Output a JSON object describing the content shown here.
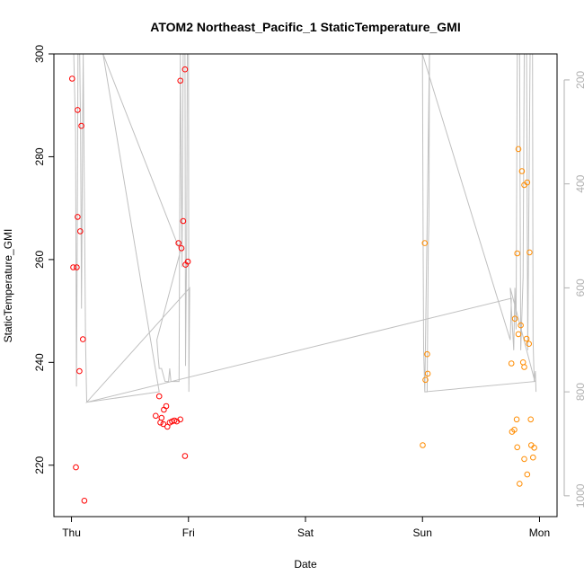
{
  "chart_data": {
    "type": "scatter",
    "title": "ATOM2 Northeast_Pacific_1 StaticTemperature_GMI",
    "xlabel": "Date",
    "ylabel": "StaticTemperature_GMI",
    "x_tick_labels": [
      "Thu",
      "Fri",
      "Sat",
      "Sun",
      "Mon"
    ],
    "x_tick_days": [
      0,
      1,
      2,
      3,
      4
    ],
    "xlim_days": [
      -0.15,
      4.15
    ],
    "ylim": [
      210,
      300
    ],
    "y_ticks": [
      220,
      240,
      260,
      280,
      300
    ],
    "y2_ticks": [
      200,
      400,
      600,
      800,
      1000
    ],
    "y2_lim": [
      150,
      1040
    ],
    "y2_inverted": true,
    "grid": false,
    "colors": {
      "red_points": "#ff0000",
      "orange_points": "#ff8c00",
      "pressure_line": "#c0c0c0",
      "axes": "#000000",
      "right_axis": "#b0b0b0"
    },
    "series": [
      {
        "color": "#ff0000",
        "points": [
          [
            0.006,
            295.2
          ],
          [
            0.053,
            289.1
          ],
          [
            0.085,
            286.0
          ],
          [
            0.053,
            268.3
          ],
          [
            0.075,
            265.5
          ],
          [
            0.015,
            258.5
          ],
          [
            0.045,
            258.5
          ],
          [
            0.098,
            244.5
          ],
          [
            0.068,
            238.3
          ],
          [
            0.038,
            219.6
          ],
          [
            0.11,
            213.1
          ],
          [
            0.75,
            233.4
          ],
          [
            0.72,
            229.6
          ],
          [
            0.77,
            229.2
          ],
          [
            0.79,
            230.8
          ],
          [
            0.81,
            231.5
          ],
          [
            0.76,
            228.3
          ],
          [
            0.785,
            228.0
          ],
          [
            0.84,
            228.3
          ],
          [
            0.86,
            228.5
          ],
          [
            0.88,
            228.7
          ],
          [
            0.82,
            227.5
          ],
          [
            0.9,
            228.5
          ],
          [
            0.93,
            228.9
          ],
          [
            0.97,
            221.8
          ],
          [
            0.93,
            294.8
          ],
          [
            0.97,
            297.0
          ],
          [
            0.955,
            267.5
          ],
          [
            0.915,
            263.2
          ],
          [
            0.94,
            262.2
          ],
          [
            0.975,
            259.0
          ],
          [
            0.995,
            259.6
          ]
        ]
      },
      {
        "color": "#ff8c00",
        "points": [
          [
            3.002,
            223.9
          ],
          [
            3.02,
            263.2
          ],
          [
            3.04,
            241.6
          ],
          [
            3.045,
            237.8
          ],
          [
            3.025,
            236.6
          ],
          [
            3.76,
            239.8
          ],
          [
            3.79,
            248.5
          ],
          [
            3.82,
            245.5
          ],
          [
            3.81,
            261.2
          ],
          [
            3.82,
            281.5
          ],
          [
            3.84,
            247.2
          ],
          [
            3.87,
            274.5
          ],
          [
            3.895,
            275.0
          ],
          [
            3.915,
            261.4
          ],
          [
            3.85,
            277.2
          ],
          [
            3.86,
            240.0
          ],
          [
            3.89,
            244.6
          ],
          [
            3.91,
            243.6
          ],
          [
            3.87,
            239.1
          ],
          [
            3.765,
            226.5
          ],
          [
            3.785,
            226.9
          ],
          [
            3.805,
            228.9
          ],
          [
            3.81,
            223.5
          ],
          [
            3.83,
            216.4
          ],
          [
            3.87,
            221.2
          ],
          [
            3.895,
            218.2
          ],
          [
            3.925,
            228.9
          ],
          [
            3.93,
            223.9
          ],
          [
            3.955,
            223.4
          ],
          [
            3.945,
            221.5
          ]
        ]
      }
    ],
    "pressure_line": {
      "color": "#c0c0c0",
      "points": [
        [
          0.0,
          150
        ],
        [
          0.02,
          150
        ],
        [
          0.035,
          300
        ],
        [
          0.043,
          790
        ],
        [
          0.05,
          500
        ],
        [
          0.056,
          150
        ],
        [
          0.07,
          150
        ],
        [
          0.078,
          300
        ],
        [
          0.086,
          640
        ],
        [
          0.095,
          300
        ],
        [
          0.1,
          150
        ],
        [
          0.12,
          700
        ],
        [
          0.13,
          820
        ],
        [
          0.75,
          800
        ],
        [
          0.27,
          150
        ],
        [
          0.93,
          530
        ],
        [
          0.73,
          700
        ],
        [
          0.74,
          730
        ],
        [
          0.75,
          755
        ],
        [
          0.77,
          755
        ],
        [
          0.8,
          780
        ],
        [
          0.82,
          780
        ],
        [
          0.83,
          780
        ],
        [
          0.84,
          755
        ],
        [
          0.85,
          780
        ],
        [
          0.92,
          780
        ],
        [
          0.93,
          150
        ],
        [
          0.945,
          560
        ],
        [
          0.955,
          150
        ],
        [
          0.97,
          150
        ],
        [
          0.975,
          750
        ],
        [
          0.985,
          500
        ],
        [
          0.99,
          150
        ],
        [
          1.0,
          150
        ],
        [
          1.003,
          800
        ],
        [
          1.01,
          600
        ],
        [
          0.13,
          820
        ],
        [
          3.76,
          620
        ],
        [
          3.75,
          700
        ],
        [
          3.0,
          150
        ],
        [
          3.005,
          490
        ],
        [
          3.01,
          720
        ],
        [
          3.02,
          800
        ],
        [
          3.04,
          800
        ],
        [
          3.05,
          520
        ],
        [
          3.055,
          470
        ],
        [
          3.06,
          150
        ],
        [
          3.02,
          800
        ],
        [
          3.96,
          780
        ],
        [
          3.75,
          600
        ],
        [
          3.78,
          720
        ],
        [
          3.79,
          600
        ],
        [
          3.8,
          680
        ],
        [
          3.81,
          150
        ],
        [
          3.83,
          150
        ],
        [
          3.84,
          720
        ],
        [
          3.86,
          580
        ],
        [
          3.87,
          150
        ],
        [
          3.89,
          150
        ],
        [
          3.9,
          720
        ],
        [
          3.92,
          150
        ],
        [
          3.94,
          150
        ],
        [
          3.945,
          700
        ],
        [
          3.955,
          780
        ],
        [
          3.965,
          760
        ],
        [
          3.97,
          800
        ]
      ]
    }
  }
}
